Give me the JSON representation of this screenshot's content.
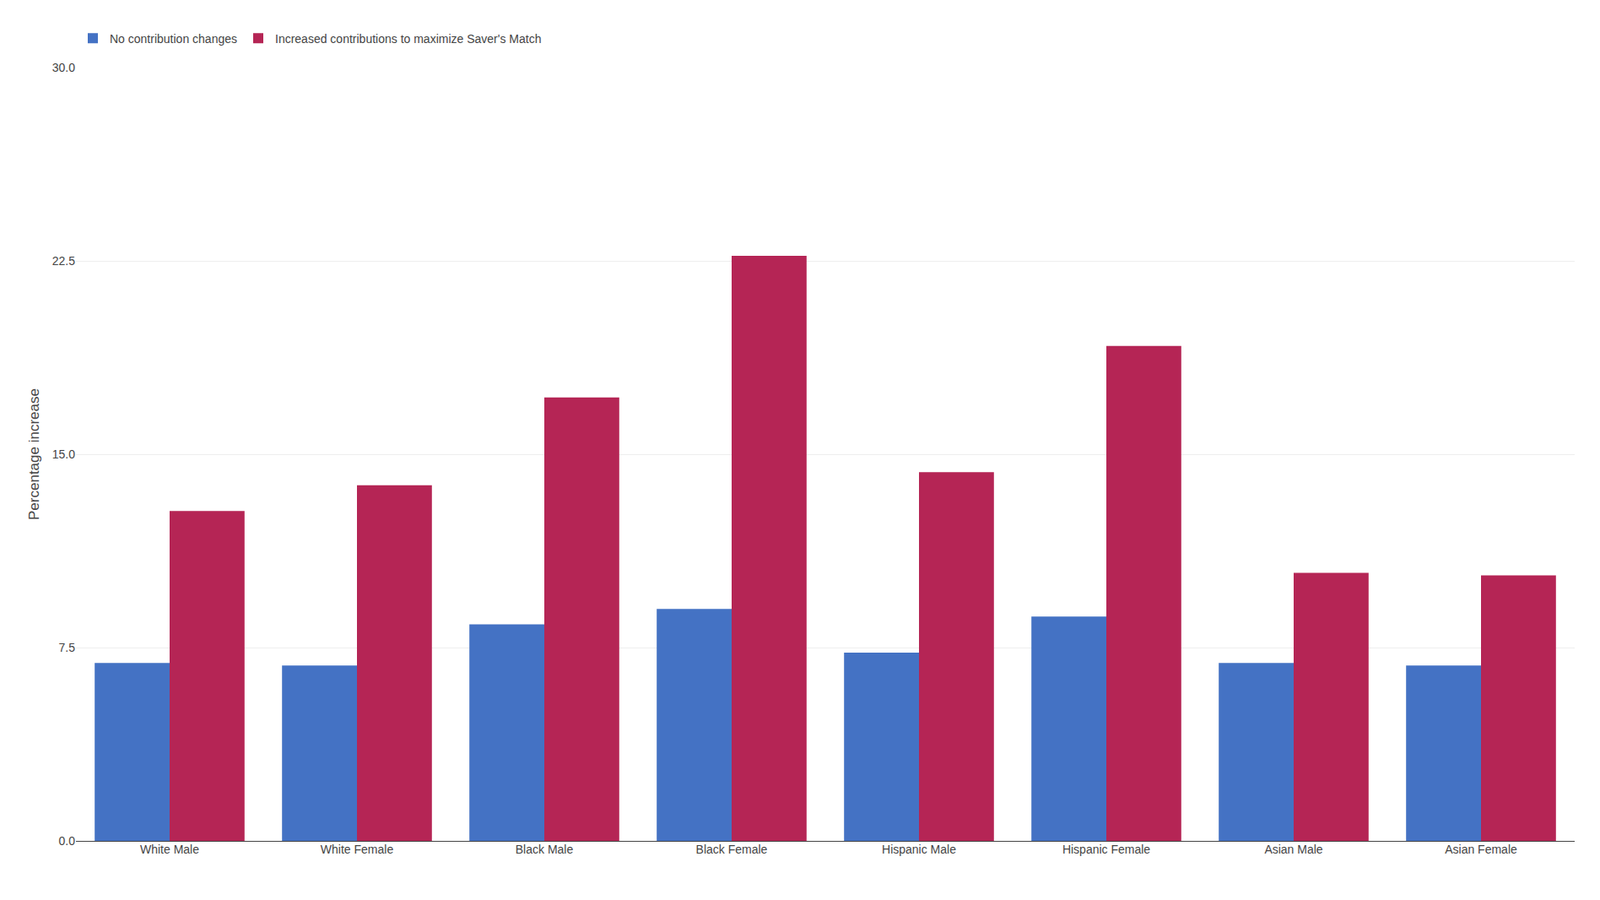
{
  "chart_data": {
    "type": "bar",
    "categories": [
      "White Male",
      "White Female",
      "Black Male",
      "Black Female",
      "Hispanic Male",
      "Hispanic Female",
      "Asian Male",
      "Asian Female"
    ],
    "series": [
      {
        "name": "No contribution changes",
        "color": "#4472C4",
        "values": [
          6.9,
          6.8,
          8.4,
          9.0,
          7.3,
          8.7,
          6.9,
          6.8
        ]
      },
      {
        "name": "Increased contributions to maximize Saver's Match",
        "color": "#B52555",
        "values": [
          12.8,
          13.8,
          17.2,
          22.7,
          14.3,
          19.2,
          10.4,
          10.3
        ]
      }
    ],
    "ylabel": "Percentage increase",
    "ylim": [
      0,
      30.0
    ],
    "yticks": [
      {
        "value": 0,
        "label": "0.0"
      },
      7.5,
      {
        "value": 15,
        "label": "15.0"
      },
      22.5,
      {
        "value": 30,
        "label": "30.0"
      }
    ],
    "grid": true,
    "legend": "upper left"
  }
}
